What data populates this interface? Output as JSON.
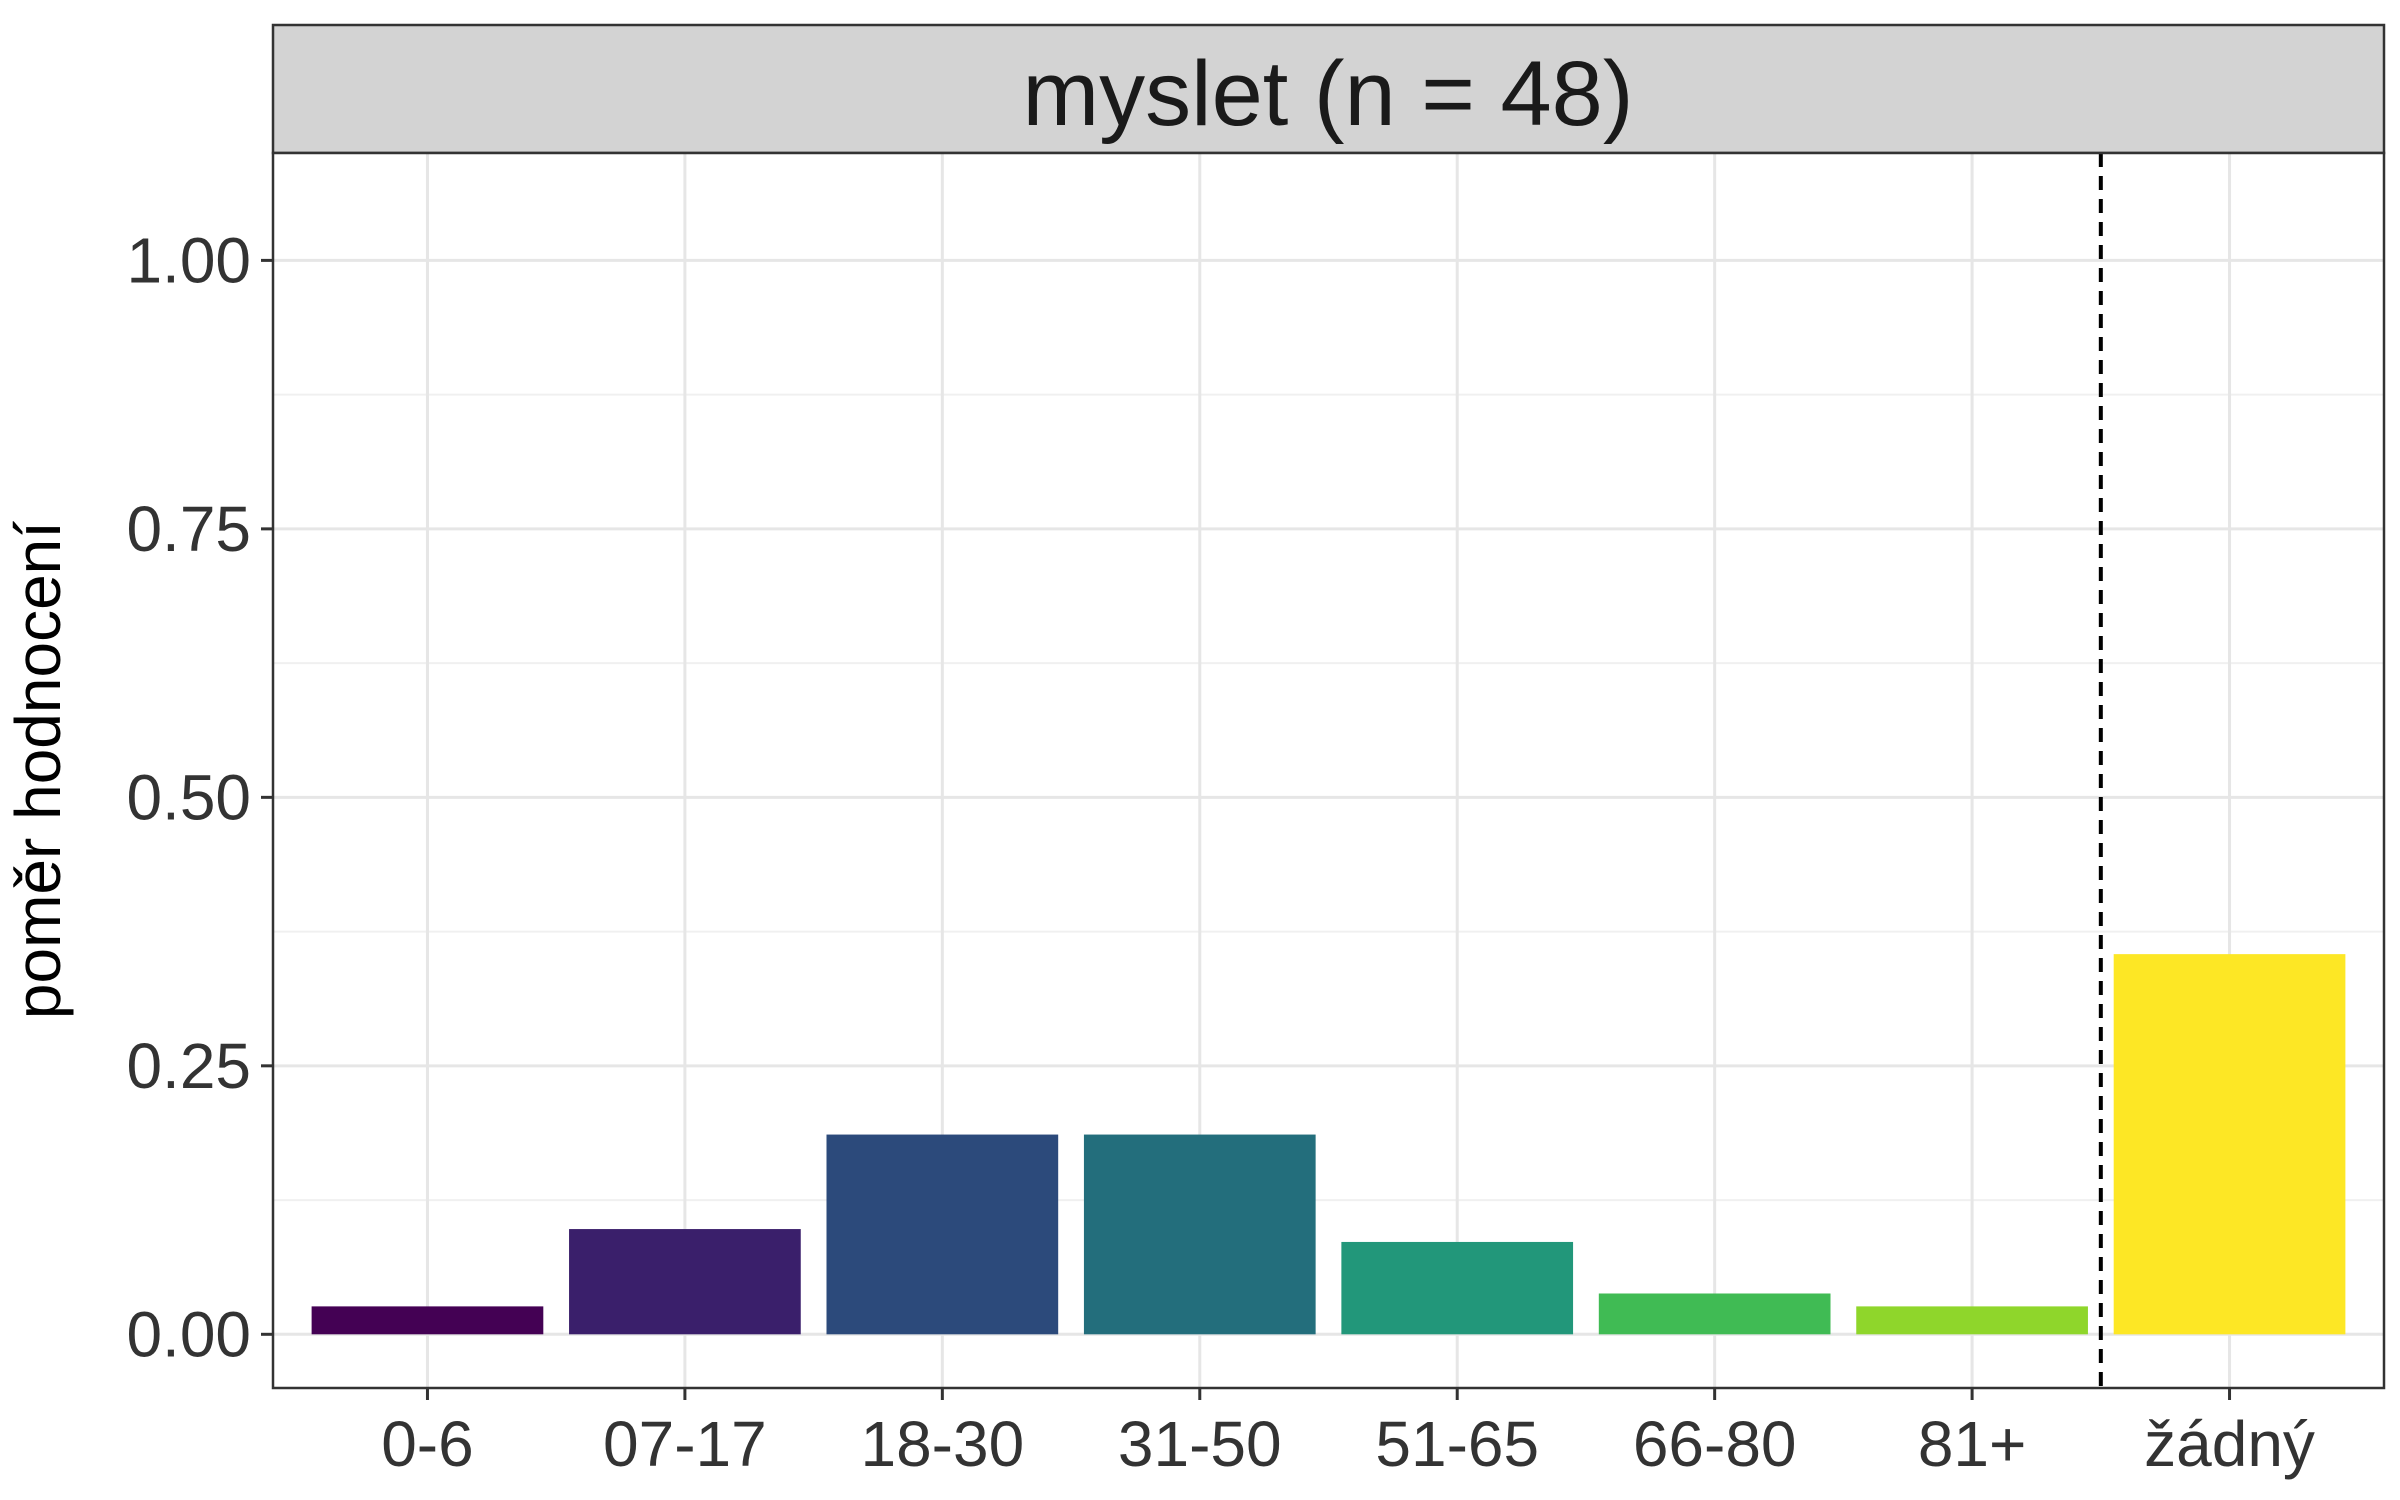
{
  "chart_data": {
    "type": "bar",
    "facet_title": "myslet (n = 48)",
    "ylabel": "poměr hodnocení",
    "xlabel": "",
    "categories": [
      "0-6",
      "07-17",
      "18-30",
      "31-50",
      "51-65",
      "66-80",
      "81+",
      "žádný"
    ],
    "values": [
      0.026,
      0.098,
      0.186,
      0.186,
      0.086,
      0.038,
      0.026,
      0.354
    ],
    "colors": [
      "#440154",
      "#3a1f6b",
      "#2c4a7b",
      "#236e7c",
      "#22977a",
      "#40bb54",
      "#8fd62b",
      "#fde725"
    ],
    "ylim": [
      -0.05,
      1.1
    ],
    "yticks": [
      0,
      0.25,
      0.5,
      0.75,
      1
    ],
    "ytick_labels": [
      "0.00",
      "0.25",
      "0.50",
      "0.75",
      "1.00"
    ],
    "reference_line": {
      "between_categories": [
        "81+",
        "žádný"
      ],
      "style": "dashed"
    },
    "grid": true,
    "legend": "none",
    "theme": "bw"
  }
}
